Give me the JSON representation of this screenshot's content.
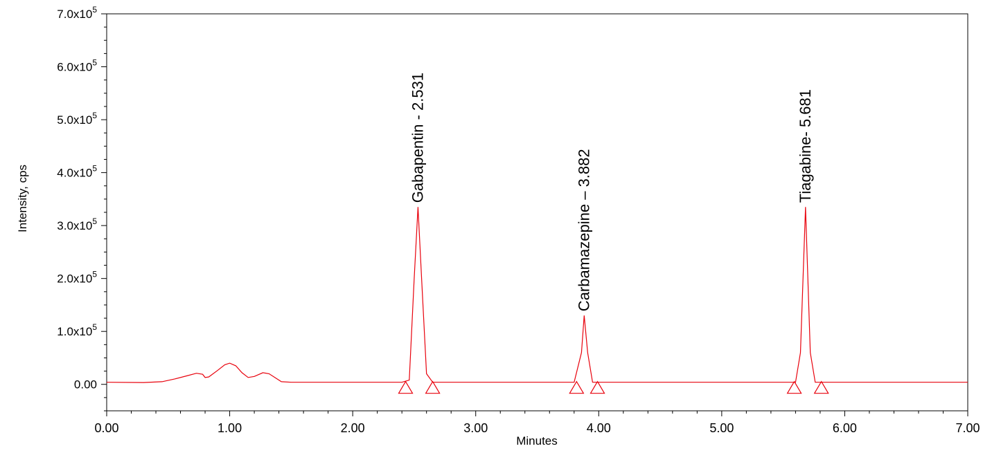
{
  "chart_data": {
    "type": "line",
    "xlabel": "Minutes",
    "ylabel": "Intensity, cps",
    "xlim": [
      0,
      7
    ],
    "ylim": [
      -50000,
      700000
    ],
    "x_ticks": [
      {
        "value": 0,
        "label": "0.00"
      },
      {
        "value": 1,
        "label": "1.00"
      },
      {
        "value": 2,
        "label": "2.00"
      },
      {
        "value": 3,
        "label": "3.00"
      },
      {
        "value": 4,
        "label": "4.00"
      },
      {
        "value": 5,
        "label": "5.00"
      },
      {
        "value": 6,
        "label": "6.00"
      },
      {
        "value": 7,
        "label": "7.00"
      }
    ],
    "y_ticks": [
      {
        "value": 0,
        "label": "0.00",
        "exp": ""
      },
      {
        "value": 100000,
        "label": "1.0x10",
        "exp": "5"
      },
      {
        "value": 200000,
        "label": "2.0x10",
        "exp": "5"
      },
      {
        "value": 300000,
        "label": "3.0x10",
        "exp": "5"
      },
      {
        "value": 400000,
        "label": "4.0x10",
        "exp": "5"
      },
      {
        "value": 500000,
        "label": "5.0x10",
        "exp": "5"
      },
      {
        "value": 600000,
        "label": "6.0x10",
        "exp": "5"
      },
      {
        "value": 700000,
        "label": "7.0x10",
        "exp": "5"
      }
    ],
    "line_color": "#e8000b",
    "baseline": 4000,
    "trace": [
      [
        0.0,
        4000
      ],
      [
        0.3,
        3500
      ],
      [
        0.45,
        5000
      ],
      [
        0.55,
        10000
      ],
      [
        0.65,
        16000
      ],
      [
        0.73,
        21000
      ],
      [
        0.78,
        19000
      ],
      [
        0.8,
        13000
      ],
      [
        0.83,
        14000
      ],
      [
        0.9,
        26000
      ],
      [
        0.96,
        37000
      ],
      [
        1.0,
        40000
      ],
      [
        1.05,
        35000
      ],
      [
        1.1,
        22000
      ],
      [
        1.15,
        13000
      ],
      [
        1.2,
        15000
      ],
      [
        1.27,
        22000
      ],
      [
        1.32,
        20000
      ],
      [
        1.38,
        11000
      ],
      [
        1.42,
        5000
      ],
      [
        1.5,
        4000
      ],
      [
        2.4,
        4000
      ],
      [
        2.46,
        8000
      ],
      [
        2.5,
        200000
      ],
      [
        2.531,
        335000
      ],
      [
        2.56,
        200000
      ],
      [
        2.6,
        20000
      ],
      [
        2.65,
        4000
      ],
      [
        3.8,
        4000
      ],
      [
        3.86,
        60000
      ],
      [
        3.882,
        130000
      ],
      [
        3.91,
        60000
      ],
      [
        3.95,
        4000
      ],
      [
        5.6,
        4000
      ],
      [
        5.64,
        60000
      ],
      [
        5.681,
        335000
      ],
      [
        5.72,
        60000
      ],
      [
        5.76,
        4000
      ],
      [
        7.0,
        4000
      ]
    ],
    "peaks": [
      {
        "label": "Gabapentin - 2.531",
        "rt": 2.531,
        "height": 335000,
        "start": 2.43,
        "end": 2.65
      },
      {
        "label": "Carbamazepine – 3.882",
        "rt": 3.882,
        "height": 130000,
        "start": 3.82,
        "end": 3.99
      },
      {
        "label": "Tiagabine- 5.681",
        "rt": 5.681,
        "height": 335000,
        "start": 5.59,
        "end": 5.81
      }
    ]
  }
}
